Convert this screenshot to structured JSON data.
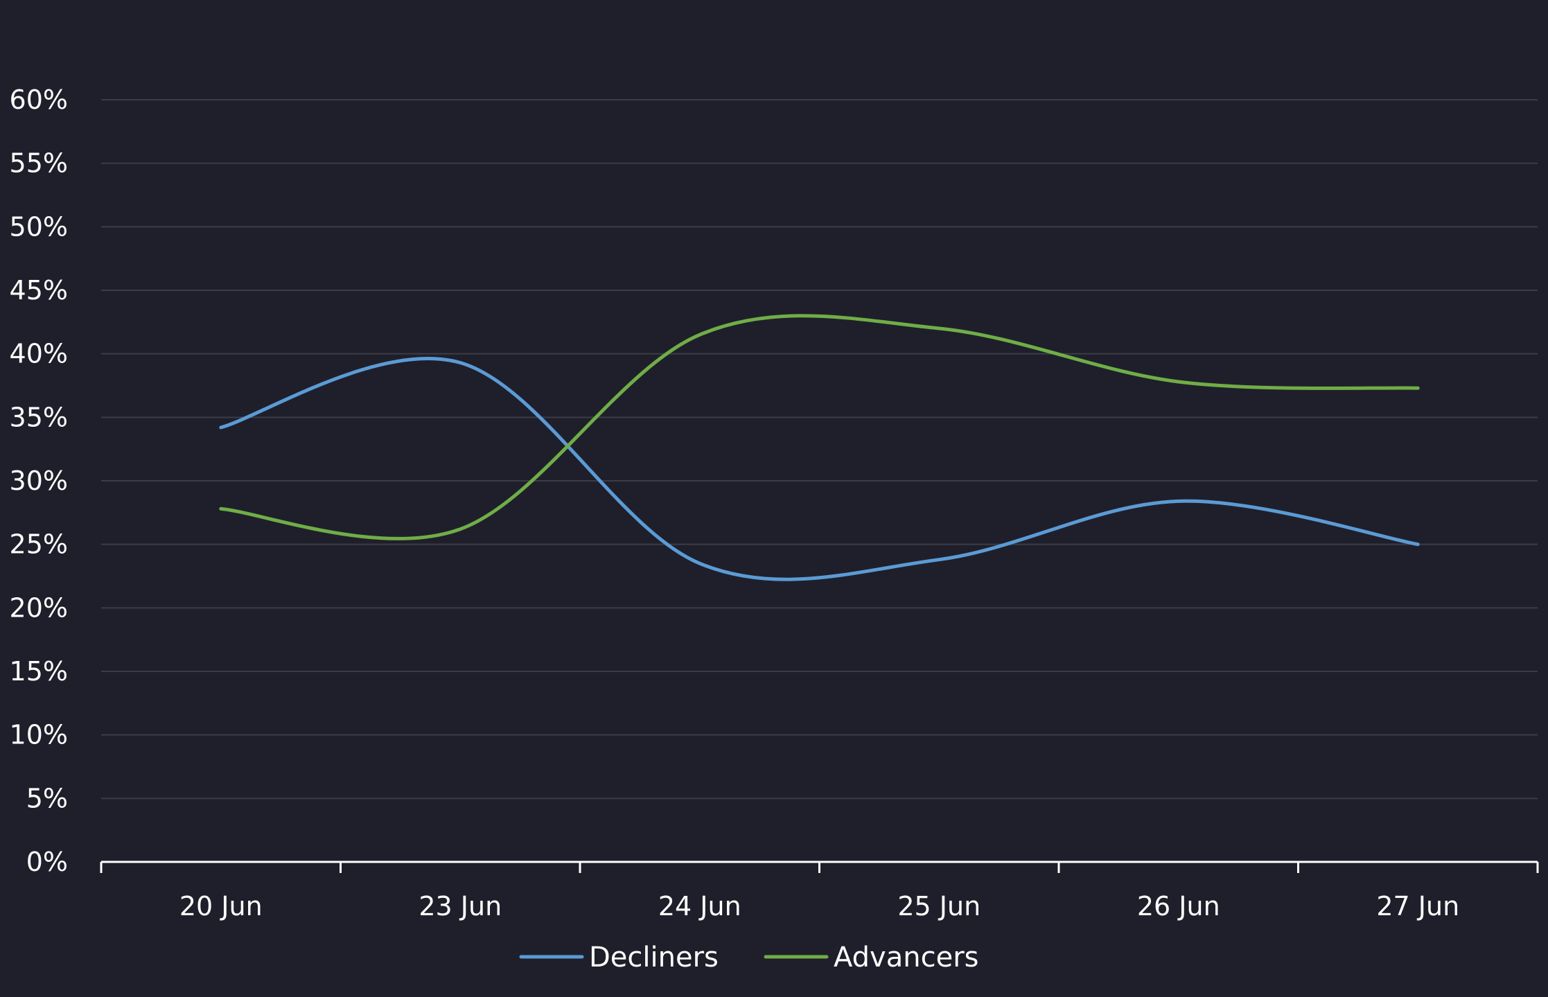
{
  "chart_data": {
    "type": "line",
    "title": "",
    "xlabel": "",
    "ylabel": "",
    "categories": [
      "20 Jun",
      "23 Jun",
      "24 Jun",
      "25 Jun",
      "26 Jun",
      "27 Jun"
    ],
    "series": [
      {
        "name": "Decliners",
        "color": "#5b9bd5",
        "values": [
          34.2,
          39.3,
          23.5,
          23.8,
          28.4,
          25.0
        ]
      },
      {
        "name": "Advancers",
        "color": "#70ad47",
        "values": [
          27.8,
          26.2,
          41.5,
          42.0,
          37.8,
          37.3
        ]
      }
    ],
    "ylim": [
      0,
      60
    ],
    "yticks": [
      0,
      5,
      10,
      15,
      20,
      25,
      30,
      35,
      40,
      45,
      50,
      55,
      60
    ],
    "ytick_labels": [
      "0%",
      "5%",
      "10%",
      "15%",
      "20%",
      "25%",
      "30%",
      "35%",
      "40%",
      "45%",
      "50%",
      "55%",
      "60%"
    ],
    "grid": true,
    "legend": "bottom-center",
    "smooth": true,
    "colors": {
      "background": "#1f1f2b",
      "gridline": "#3c3c46",
      "axis": "#ffffff",
      "text": "#ffffff"
    }
  }
}
